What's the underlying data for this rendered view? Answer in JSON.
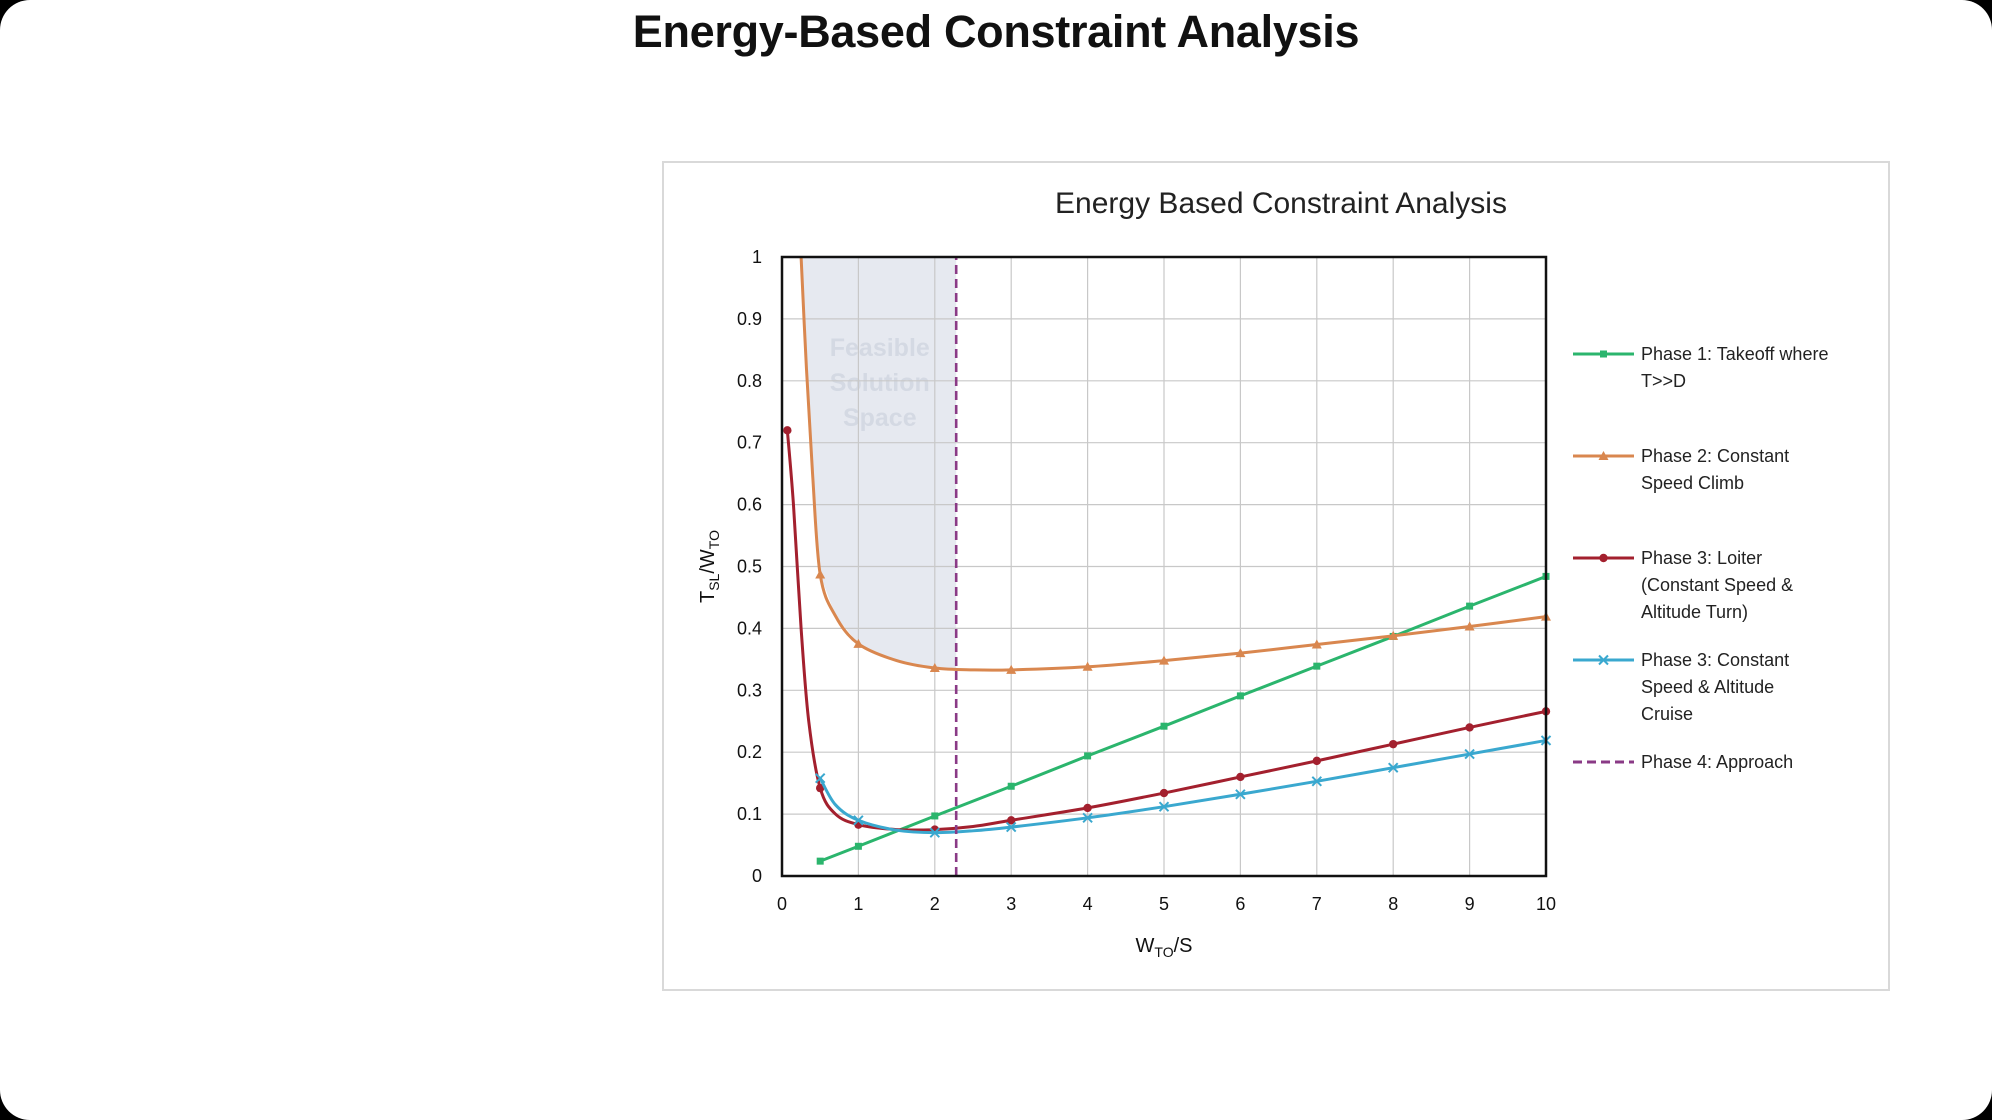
{
  "slide": {
    "title": "Energy-Based Constraint Analysis"
  },
  "chart_data": {
    "type": "line",
    "title": "Energy Based Constraint Analysis",
    "xlabel": {
      "main": "W",
      "sub": "TO",
      "tail": "/S"
    },
    "ylabel": {
      "main1": "T",
      "sub1": "SL",
      "mid": "/W",
      "sub2": "TO"
    },
    "xlim": [
      0,
      10
    ],
    "ylim": [
      0,
      1
    ],
    "x_ticks": [
      "0",
      "1",
      "2",
      "3",
      "4",
      "5",
      "6",
      "7",
      "8",
      "9",
      "10"
    ],
    "y_ticks": [
      "0",
      "0.1",
      "0.2",
      "0.3",
      "0.4",
      "0.5",
      "0.6",
      "0.7",
      "0.8",
      "0.9",
      "1"
    ],
    "grid": true,
    "legend_position": "right",
    "feasible_region": {
      "lines": [
        "Feasible",
        "Solution",
        "Space"
      ],
      "color": "#e6e9f0"
    },
    "series": [
      {
        "name": "Phase 1: Takeoff where T>>D",
        "legend_lines": [
          "Phase 1: Takeoff where",
          "T>>D"
        ],
        "color": "#2bb56d",
        "marker": "square",
        "style": "solid",
        "smooth": false,
        "points": [
          [
            0.5,
            0.024
          ],
          [
            1,
            0.048
          ],
          [
            2,
            0.097
          ],
          [
            3,
            0.145
          ],
          [
            4,
            0.194
          ],
          [
            5,
            0.242
          ],
          [
            6,
            0.291
          ],
          [
            7,
            0.339
          ],
          [
            8,
            0.387
          ],
          [
            9,
            0.436
          ],
          [
            10,
            0.484
          ]
        ],
        "marker_points": [
          [
            0.5,
            0.024
          ],
          [
            1,
            0.048
          ],
          [
            2,
            0.097
          ],
          [
            3,
            0.145
          ],
          [
            4,
            0.194
          ],
          [
            5,
            0.242
          ],
          [
            6,
            0.291
          ],
          [
            7,
            0.339
          ],
          [
            8,
            0.387
          ],
          [
            9,
            0.436
          ],
          [
            10,
            0.484
          ]
        ]
      },
      {
        "name": "Phase 2: Constant Speed Climb",
        "legend_lines": [
          "Phase 2: Constant",
          "Speed Climb"
        ],
        "color": "#d9874f",
        "marker": "triangle",
        "style": "solid",
        "smooth": true,
        "points": [
          [
            0.25,
            1.0
          ],
          [
            0.32,
            0.82
          ],
          [
            0.4,
            0.65
          ],
          [
            0.5,
            0.487
          ],
          [
            0.7,
            0.42
          ],
          [
            1,
            0.375
          ],
          [
            1.5,
            0.348
          ],
          [
            2,
            0.336
          ],
          [
            2.5,
            0.333
          ],
          [
            3,
            0.333
          ],
          [
            4,
            0.338
          ],
          [
            5,
            0.348
          ],
          [
            6,
            0.36
          ],
          [
            7,
            0.374
          ],
          [
            8,
            0.388
          ],
          [
            9,
            0.403
          ],
          [
            10,
            0.419
          ]
        ],
        "marker_points": [
          [
            0.5,
            0.487
          ],
          [
            1,
            0.375
          ],
          [
            2,
            0.336
          ],
          [
            3,
            0.333
          ],
          [
            4,
            0.338
          ],
          [
            5,
            0.348
          ],
          [
            6,
            0.36
          ],
          [
            7,
            0.374
          ],
          [
            8,
            0.388
          ],
          [
            9,
            0.403
          ],
          [
            10,
            0.419
          ]
        ]
      },
      {
        "name": "Phase 3: Loiter (Constant Speed & Altitude Turn)",
        "legend_lines": [
          "Phase 3: Loiter",
          "(Constant Speed &",
          "Altitude Turn)"
        ],
        "color": "#a3202e",
        "marker": "circle",
        "style": "solid",
        "smooth": true,
        "points": [
          [
            0.07,
            0.72
          ],
          [
            0.15,
            0.6
          ],
          [
            0.25,
            0.4
          ],
          [
            0.35,
            0.25
          ],
          [
            0.5,
            0.142
          ],
          [
            0.7,
            0.1
          ],
          [
            1,
            0.083
          ],
          [
            1.5,
            0.075
          ],
          [
            2,
            0.075
          ],
          [
            2.5,
            0.08
          ],
          [
            3,
            0.09
          ],
          [
            4,
            0.11
          ],
          [
            5,
            0.134
          ],
          [
            6,
            0.16
          ],
          [
            7,
            0.186
          ],
          [
            8,
            0.213
          ],
          [
            9,
            0.24
          ],
          [
            10,
            0.266
          ]
        ],
        "marker_points": [
          [
            0.07,
            0.72
          ],
          [
            0.5,
            0.142
          ],
          [
            1,
            0.083
          ],
          [
            2,
            0.075
          ],
          [
            3,
            0.09
          ],
          [
            4,
            0.11
          ],
          [
            5,
            0.134
          ],
          [
            6,
            0.16
          ],
          [
            7,
            0.186
          ],
          [
            8,
            0.213
          ],
          [
            9,
            0.24
          ],
          [
            10,
            0.266
          ]
        ]
      },
      {
        "name": "Phase 3: Constant Speed & Altitude Cruise",
        "legend_lines": [
          "Phase 3: Constant",
          "Speed & Altitude",
          "Cruise"
        ],
        "color": "#3aa8cf",
        "marker": "x",
        "style": "solid",
        "smooth": true,
        "points": [
          [
            0.5,
            0.158
          ],
          [
            0.7,
            0.115
          ],
          [
            1,
            0.09
          ],
          [
            1.5,
            0.074
          ],
          [
            2,
            0.07
          ],
          [
            2.5,
            0.073
          ],
          [
            3,
            0.079
          ],
          [
            4,
            0.094
          ],
          [
            5,
            0.112
          ],
          [
            6,
            0.132
          ],
          [
            7,
            0.153
          ],
          [
            8,
            0.175
          ],
          [
            9,
            0.197
          ],
          [
            10,
            0.219
          ]
        ],
        "marker_points": [
          [
            0.5,
            0.158
          ],
          [
            1,
            0.09
          ],
          [
            2,
            0.07
          ],
          [
            3,
            0.079
          ],
          [
            4,
            0.094
          ],
          [
            5,
            0.112
          ],
          [
            6,
            0.132
          ],
          [
            7,
            0.153
          ],
          [
            8,
            0.175
          ],
          [
            9,
            0.197
          ],
          [
            10,
            0.219
          ]
        ]
      },
      {
        "name": "Phase 4: Approach",
        "legend_lines": [
          "Phase 4: Approach"
        ],
        "color": "#8a3a86",
        "marker": "none",
        "style": "dashed",
        "smooth": false,
        "points": [
          [
            2.28,
            0
          ],
          [
            2.28,
            1
          ]
        ],
        "marker_points": []
      }
    ]
  }
}
